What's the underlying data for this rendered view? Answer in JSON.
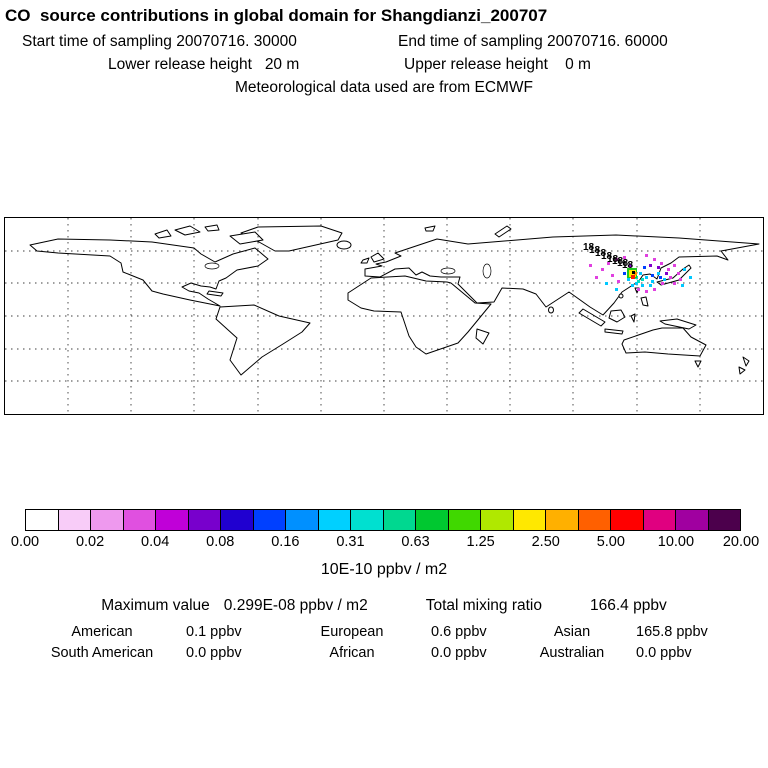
{
  "header": {
    "title": "CO  source contributions in global domain for Shangdianzi_200707",
    "sampling_start": "Start time of sampling 20070716. 30000",
    "sampling_end": "End time of sampling 20070716. 60000",
    "lower_release": "Lower release height   20 m",
    "upper_release": "Upper release height    0 m",
    "met_data": "Meteorological data used are from ECMWF"
  },
  "map": {
    "traj_label": "18"
  },
  "colorbar": {
    "colors": [
      "#ffffff",
      "#f8ccf8",
      "#ee99ee",
      "#e050e0",
      "#c000d8",
      "#7800cc",
      "#2000d0",
      "#0040ff",
      "#0090ff",
      "#00d0ff",
      "#00e0d0",
      "#00d890",
      "#00c830",
      "#40d800",
      "#b0e800",
      "#ffe800",
      "#ffb000",
      "#ff6000",
      "#ff0000",
      "#e00080",
      "#a000a0",
      "#4c004c"
    ],
    "ticks": [
      "0.00",
      "0.02",
      "0.04",
      "0.08",
      "0.16",
      "0.31",
      "0.63",
      "1.25",
      "2.50",
      "5.00",
      "10.00",
      "20.00"
    ],
    "unit": "10E-10 ppbv / m2"
  },
  "stats": {
    "max_label": "Maximum value",
    "max_value": "0.299E-08 ppbv / m2",
    "total_label": "Total mixing ratio",
    "total_value": "166.4 ppbv",
    "regions": [
      {
        "name": "American",
        "value": "0.1 ppbv"
      },
      {
        "name": "European",
        "value": "0.6 ppbv"
      },
      {
        "name": "Asian",
        "value": "165.8 ppbv"
      },
      {
        "name": "South American",
        "value": "0.0 ppbv"
      },
      {
        "name": "African",
        "value": "0.0 ppbv"
      },
      {
        "name": "Australian",
        "value": "0.0 ppbv"
      }
    ]
  },
  "chart_data": {
    "type": "heatmap",
    "title": "CO source contributions in global domain for Shangdianzi_200707",
    "projection": "equirectangular world map with dashed 30-degree graticule",
    "colorbar_ticks": [
      0.0,
      0.02,
      0.04,
      0.08,
      0.16,
      0.31,
      0.63,
      1.25,
      2.5,
      5.0,
      10.0,
      20.0
    ],
    "colorbar_unit": "10E-10 ppbv / m2",
    "maximum_value": "0.299E-08 ppbv / m2",
    "total_mixing_ratio_ppbv": 166.4,
    "contributions_ppbv": {
      "American": 0.1,
      "European": 0.6,
      "Asian": 165.8,
      "South American": 0.0,
      "African": 0.0,
      "Australian": 0.0
    },
    "plume_region": "Northeast Asia near Shangdianzi station, trajectory labels reading 18 northwest of plume core"
  }
}
